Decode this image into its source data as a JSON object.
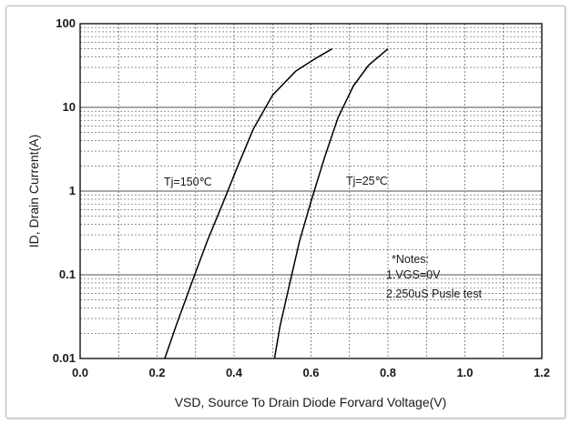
{
  "chart_data": {
    "type": "line",
    "title": "",
    "xlabel": "VSD, Source To Drain Diode Forvard Voltage(V)",
    "ylabel": "ID,  Drain Current(A)",
    "xlim": [
      0.0,
      1.2
    ],
    "ylim": [
      0.01,
      100
    ],
    "yscale": "log",
    "grid": true,
    "x_ticks": [
      "0.0",
      "0.2",
      "0.4",
      "0.6",
      "0.8",
      "1.0",
      "1.2"
    ],
    "y_ticks": [
      "0.01",
      "0.1",
      "1",
      "10",
      "100"
    ],
    "series": [
      {
        "name": "Tj=150℃",
        "x": [
          0.22,
          0.25,
          0.29,
          0.33,
          0.37,
          0.41,
          0.45,
          0.5,
          0.56,
          0.61,
          0.655
        ],
        "y": [
          0.01,
          0.025,
          0.08,
          0.25,
          0.7,
          2.0,
          5.5,
          14,
          27,
          38,
          50
        ]
      },
      {
        "name": "Tj=25℃",
        "x": [
          0.505,
          0.52,
          0.545,
          0.57,
          0.6,
          0.635,
          0.67,
          0.71,
          0.75,
          0.8
        ],
        "y": [
          0.01,
          0.025,
          0.08,
          0.25,
          0.75,
          2.5,
          7.5,
          18,
          32,
          50
        ]
      }
    ],
    "series_label_positions": "Tj=150℃ left of its curve near 1A; Tj=25℃ right of its curve near 1A",
    "annotations": [
      "*Notes:",
      "1.VGS=0V",
      "2.250uS Pusle test"
    ]
  }
}
